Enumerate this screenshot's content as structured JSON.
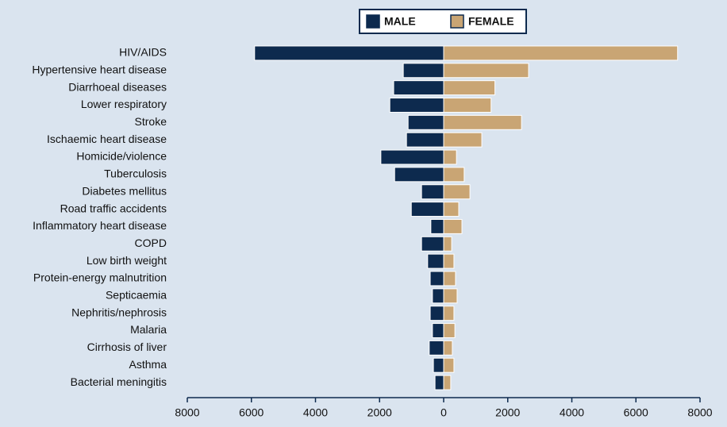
{
  "chart_data": {
    "type": "bar",
    "orientation": "horizontal",
    "stacking": "diverging",
    "categories": [
      "HIV/AIDS",
      "Hypertensive heart disease",
      "Diarrhoeal diseases",
      "Lower respiratory",
      "Stroke",
      "Ischaemic heart disease",
      "Homicide/violence",
      "Tuberculosis",
      "Diabetes mellitus",
      "Road traffic accidents",
      "Inflammatory heart disease",
      "COPD",
      "Low birth weight",
      "Protein-energy malnutrition",
      "Septicaemia",
      "Nephritis/nephrosis",
      "Malaria",
      "Cirrhosis of liver",
      "Asthma",
      "Bacterial meningitis"
    ],
    "series": [
      {
        "name": "MALE",
        "color": "#0d2a4e",
        "values": [
          -5900,
          -1260,
          -1560,
          -1680,
          -1110,
          -1160,
          -1960,
          -1530,
          -690,
          -1010,
          -400,
          -690,
          -500,
          -420,
          -350,
          -420,
          -350,
          -450,
          -320,
          -270
        ]
      },
      {
        "name": "FEMALE",
        "color": "#c9a574",
        "values": [
          7300,
          2650,
          1600,
          1480,
          2430,
          1190,
          400,
          640,
          820,
          470,
          570,
          250,
          320,
          370,
          420,
          320,
          350,
          270,
          320,
          220
        ]
      }
    ],
    "xlim": [
      -8000,
      8000
    ],
    "xticks": [
      {
        "value": -8000,
        "label": "8000"
      },
      {
        "value": -6000,
        "label": "6000"
      },
      {
        "value": -4000,
        "label": "4000"
      },
      {
        "value": -2000,
        "label": "2000"
      },
      0,
      2000,
      4000,
      6000,
      8000
    ],
    "legend": "top"
  }
}
